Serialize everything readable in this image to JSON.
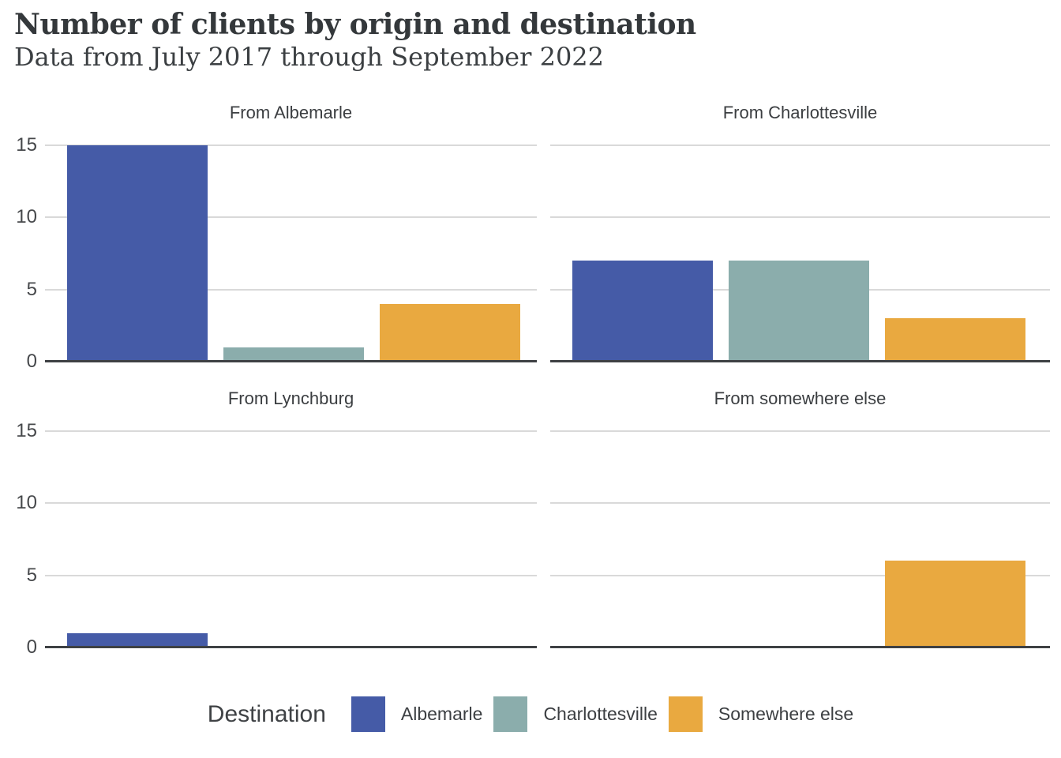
{
  "chart_data": {
    "type": "bar",
    "title": "Number of clients by origin and destination",
    "subtitle": "Data from July 2017 through September 2022",
    "categories": [
      "Albemarle",
      "Charlottesville",
      "Somewhere else"
    ],
    "facets": [
      {
        "title": "From Albemarle",
        "values": [
          15,
          1,
          4
        ]
      },
      {
        "title": "From Charlottesville",
        "values": [
          7,
          7,
          3
        ]
      },
      {
        "title": "From Lynchburg",
        "values": [
          1,
          0,
          0
        ]
      },
      {
        "title": "From somewhere else",
        "values": [
          0,
          0,
          6
        ]
      }
    ],
    "ylim": [
      0,
      15
    ],
    "y_ticks": [
      0,
      5,
      10,
      15
    ],
    "grid": "horizontal-only",
    "legend": {
      "title": "Destination",
      "position": "bottom",
      "entries": [
        {
          "label": "Albemarle",
          "color": "#455ba7"
        },
        {
          "label": "Charlottesville",
          "color": "#8badac"
        },
        {
          "label": "Somewhere else",
          "color": "#e9a940"
        }
      ]
    },
    "style": {
      "gridline_color": "#d9d9d9",
      "axis_line_color": "#3e4144"
    }
  }
}
